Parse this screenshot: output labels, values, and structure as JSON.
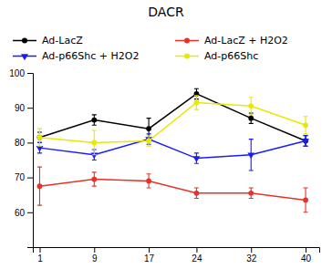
{
  "chart_data": {
    "type": "line",
    "title": "DACR",
    "x": [
      1,
      9,
      17,
      24,
      32,
      40
    ],
    "series": [
      {
        "name": "Ad-LacZ",
        "color": "#000000",
        "marker": "circle",
        "line_style": "solid",
        "values": [
          81.5,
          86.5,
          84.0,
          94.0,
          87.0,
          80.5
        ],
        "errors": [
          1.5,
          1.5,
          3.0,
          1.5,
          1.5,
          1.5
        ]
      },
      {
        "name": "Ad-LacZ + H2O2",
        "color": "#e8312a",
        "marker": "circle",
        "line_style": "solid",
        "values": [
          67.5,
          69.5,
          69.0,
          65.5,
          65.5,
          63.5
        ],
        "errors": [
          5.5,
          2.0,
          2.0,
          1.5,
          1.5,
          3.5
        ]
      },
      {
        "name": "Ad-p66Shc + H2O2",
        "color": "#1a1aff",
        "marker": "triangle-down",
        "line_style": "solid",
        "values": [
          78.5,
          76.5,
          81.0,
          75.5,
          76.5,
          80.5
        ],
        "errors": [
          1.5,
          1.5,
          1.5,
          1.5,
          4.5,
          1.5
        ]
      },
      {
        "name": "Ad-p66Shc",
        "color": "#e8e800",
        "marker": "circle",
        "line_style": "solid",
        "values": [
          81.5,
          80.0,
          80.5,
          91.5,
          90.5,
          85.0
        ],
        "errors": [
          2.5,
          3.5,
          1.5,
          2.0,
          2.5,
          2.5
        ]
      }
    ],
    "xlim": [
      0,
      42
    ],
    "ylim": [
      50,
      100
    ],
    "xticks": [
      1,
      9,
      17,
      24,
      32,
      40
    ],
    "yticks": [
      60,
      70,
      80,
      90,
      100
    ],
    "grid": false,
    "legend": "top"
  }
}
